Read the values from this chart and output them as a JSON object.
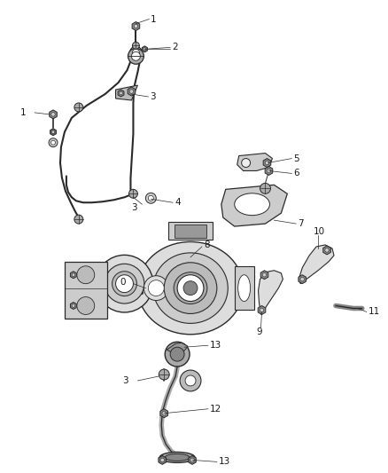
{
  "background": "#ffffff",
  "line_color": "#2a2a2a",
  "label_color": "#1a1a1a",
  "fig_width": 4.38,
  "fig_height": 5.33,
  "dpi": 100
}
